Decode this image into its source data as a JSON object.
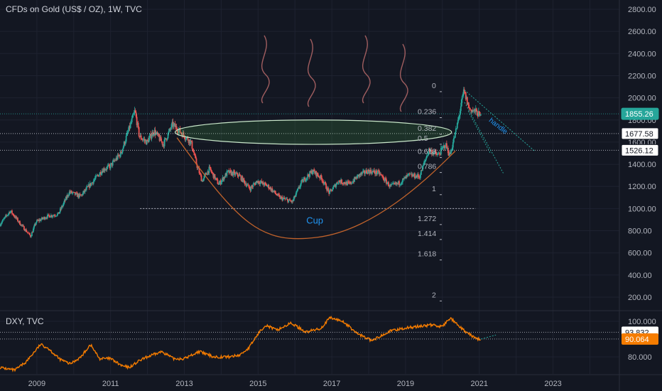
{
  "header": {
    "title": "CFDs on Gold (US$ / OZ), 1W, TVC",
    "dxy_title": "DXY, TVC"
  },
  "colors": {
    "background": "#131722",
    "grid": "#1e2230",
    "candle_up": "#26a69a",
    "candle_down": "#ef5350",
    "dxy_line": "#f57c00",
    "cup_curve": "#c0622b",
    "annotation_blue": "#2196f3",
    "trend_teal": "#26a69a",
    "steam": "#b86a6a",
    "badge_dark": "#131722",
    "badge_orange": "#f57c00",
    "badge_teal": "#26a69a"
  },
  "chart_data": [
    {
      "type": "candlestick",
      "title": "CFDs on Gold (US$ / OZ), 1W, TVC",
      "y_ticks": [
        2800,
        2600,
        2400,
        2200,
        2000,
        1800,
        1600,
        1400,
        1200,
        1000,
        800,
        600,
        400,
        200
      ],
      "y_tick_labels": [
        "2800.00",
        "2600.00",
        "2400.00",
        "2200.00",
        "2000.00",
        "1800.00",
        "1600.00",
        "1400.00",
        "1200.00",
        "1000.00",
        "800.00",
        "600.00",
        "400.00",
        "200.00"
      ],
      "ylim": [
        100,
        2880
      ],
      "xlim": [
        2008.0,
        2024.8
      ],
      "x_ticks": [
        2009,
        2011,
        2013,
        2015,
        2017,
        2019,
        2021,
        2023
      ],
      "x_tick_labels": [
        "2009",
        "2011",
        "2013",
        "2015",
        "2017",
        "2019",
        "2021",
        "2023"
      ],
      "grid": true,
      "price_path": [
        [
          2008.0,
          850
        ],
        [
          2008.3,
          980
        ],
        [
          2008.6,
          850
        ],
        [
          2008.85,
          750
        ],
        [
          2009.0,
          880
        ],
        [
          2009.3,
          930
        ],
        [
          2009.6,
          950
        ],
        [
          2009.9,
          1150
        ],
        [
          2010.2,
          1110
        ],
        [
          2010.5,
          1230
        ],
        [
          2010.8,
          1350
        ],
        [
          2011.0,
          1380
        ],
        [
          2011.3,
          1500
        ],
        [
          2011.55,
          1750
        ],
        [
          2011.68,
          1880
        ],
        [
          2011.8,
          1650
        ],
        [
          2012.0,
          1600
        ],
        [
          2012.2,
          1700
        ],
        [
          2012.45,
          1580
        ],
        [
          2012.7,
          1760
        ],
        [
          2012.95,
          1680
        ],
        [
          2013.2,
          1600
        ],
        [
          2013.35,
          1400
        ],
        [
          2013.5,
          1250
        ],
        [
          2013.7,
          1360
        ],
        [
          2013.95,
          1220
        ],
        [
          2014.2,
          1330
        ],
        [
          2014.5,
          1300
        ],
        [
          2014.8,
          1180
        ],
        [
          2015.0,
          1250
        ],
        [
          2015.3,
          1200
        ],
        [
          2015.6,
          1100
        ],
        [
          2015.95,
          1060
        ],
        [
          2016.2,
          1240
        ],
        [
          2016.5,
          1340
        ],
        [
          2016.75,
          1270
        ],
        [
          2016.95,
          1140
        ],
        [
          2017.2,
          1250
        ],
        [
          2017.5,
          1220
        ],
        [
          2017.75,
          1300
        ],
        [
          2018.0,
          1340
        ],
        [
          2018.3,
          1320
        ],
        [
          2018.6,
          1200
        ],
        [
          2018.85,
          1230
        ],
        [
          2019.1,
          1300
        ],
        [
          2019.4,
          1290
        ],
        [
          2019.65,
          1530
        ],
        [
          2019.9,
          1480
        ],
        [
          2020.1,
          1580
        ],
        [
          2020.22,
          1480
        ],
        [
          2020.4,
          1720
        ],
        [
          2020.6,
          2060
        ],
        [
          2020.75,
          1900
        ],
        [
          2020.95,
          1870
        ],
        [
          2021.05,
          1830
        ]
      ],
      "last_price": 1855.26,
      "price_labels": [
        "1855.26",
        "1677.58",
        "1526.12"
      ],
      "price_lines": [
        1855.26,
        1677.58,
        1526.12
      ],
      "support_line": 1000,
      "fibonacci": {
        "levels": [
          "0",
          "0.236",
          "0.382",
          "0.5",
          "0.618",
          "0.786",
          "1",
          "1.272",
          "1.414",
          "1.618",
          "2"
        ],
        "values": [
          2075,
          1840,
          1690,
          1600,
          1480,
          1345,
          1145,
          875,
          740,
          555,
          185
        ]
      },
      "annotations": {
        "cup_label": "Cup",
        "handle_label": "handle",
        "cup_curve": [
          [
            2012.8,
            1640
          ],
          [
            2014.5,
            1050
          ],
          [
            2016.6,
            740
          ],
          [
            2018.6,
            900
          ],
          [
            2020.35,
            1520
          ]
        ],
        "rim_ellipse": {
          "center": [
            2016.5,
            1690
          ],
          "rx_years": 3.75,
          "ry_dollars": 110
        },
        "handle_channel": [
          {
            "from": [
              2020.6,
              2070
            ],
            "to": [
              2022.5,
              1520
            ]
          },
          {
            "from": [
              2020.6,
              1960
            ],
            "to": [
              2021.65,
              1320
            ]
          },
          {
            "from": [
              2020.7,
              1880
            ],
            "to": [
              2021.3,
              1500
            ]
          }
        ]
      }
    },
    {
      "type": "line",
      "title": "DXY, TVC",
      "y_tick_labels": [
        "80.000",
        "100.000"
      ],
      "y_ticks": [
        80,
        100
      ],
      "ylim": [
        72,
        102
      ],
      "last_value": 90.064,
      "price_labels": [
        "93.832",
        "90.064"
      ],
      "price_lines": [
        93.832,
        90.064
      ],
      "series": [
        {
          "values_path": [
            [
              2008.0,
              74
            ],
            [
              2008.4,
              72.5
            ],
            [
              2008.7,
              77
            ],
            [
              2009.1,
              87
            ],
            [
              2009.3,
              85
            ],
            [
              2009.6,
              79
            ],
            [
              2009.9,
              76
            ],
            [
              2010.2,
              80
            ],
            [
              2010.45,
              87
            ],
            [
              2010.7,
              79
            ],
            [
              2011.0,
              79
            ],
            [
              2011.3,
              75
            ],
            [
              2011.5,
              74
            ],
            [
              2011.8,
              78
            ],
            [
              2012.0,
              80
            ],
            [
              2012.4,
              83
            ],
            [
              2012.7,
              79
            ],
            [
              2013.0,
              79
            ],
            [
              2013.4,
              83
            ],
            [
              2013.8,
              80
            ],
            [
              2014.2,
              80
            ],
            [
              2014.5,
              81
            ],
            [
              2014.75,
              85
            ],
            [
              2015.0,
              93
            ],
            [
              2015.2,
              98
            ],
            [
              2015.5,
              95
            ],
            [
              2015.9,
              99
            ],
            [
              2016.3,
              94
            ],
            [
              2016.7,
              96
            ],
            [
              2016.95,
              102
            ],
            [
              2017.3,
              100
            ],
            [
              2017.7,
              93
            ],
            [
              2018.1,
              89
            ],
            [
              2018.5,
              94
            ],
            [
              2018.9,
              96
            ],
            [
              2019.3,
              97
            ],
            [
              2019.7,
              98
            ],
            [
              2020.0,
              97
            ],
            [
              2020.22,
              102
            ],
            [
              2020.45,
              97
            ],
            [
              2020.7,
              93
            ],
            [
              2020.95,
              90
            ],
            [
              2021.05,
              90
            ]
          ]
        }
      ]
    }
  ]
}
